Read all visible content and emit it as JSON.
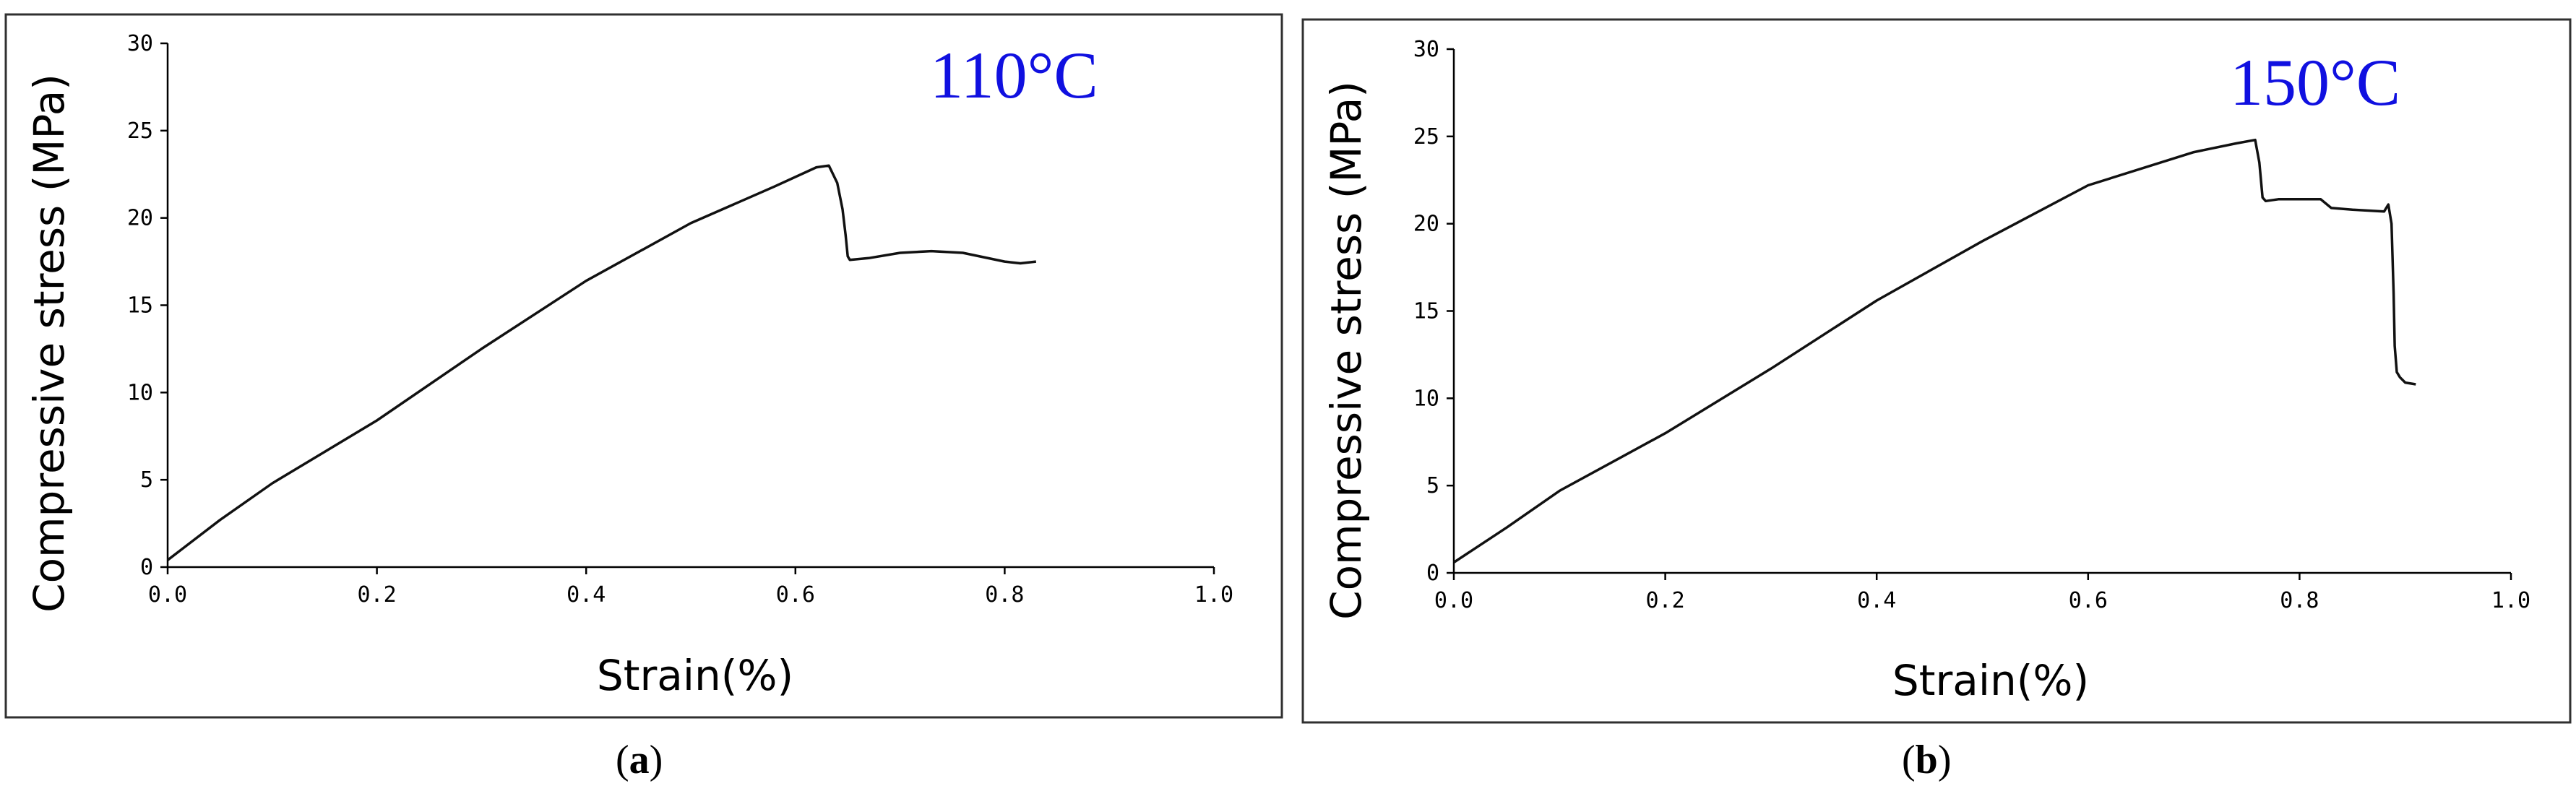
{
  "chart_data": [
    {
      "type": "line",
      "panel": "(a)",
      "annotation": "110°C",
      "xlabel": "Strain(%)",
      "ylabel": "Compressive stress (MPa)",
      "xlim": [
        0,
        1.0
      ],
      "ylim": [
        0,
        30
      ],
      "xticks": [
        "0.0",
        "0.2",
        "0.4",
        "0.6",
        "0.8",
        "1.0"
      ],
      "yticks": [
        "0",
        "5",
        "10",
        "15",
        "20",
        "25",
        "30"
      ],
      "x": [
        0,
        0.05,
        0.1,
        0.2,
        0.3,
        0.4,
        0.5,
        0.58,
        0.62,
        0.632,
        0.64,
        0.645,
        0.648,
        0.65,
        0.652,
        0.67,
        0.7,
        0.73,
        0.76,
        0.8,
        0.815,
        0.83
      ],
      "y": [
        0.4,
        2.7,
        4.8,
        8.4,
        12.5,
        16.4,
        19.7,
        21.8,
        22.9,
        23.0,
        22.0,
        20.5,
        19.0,
        17.8,
        17.6,
        17.7,
        18.0,
        18.1,
        18.0,
        17.5,
        17.4,
        17.5
      ]
    },
    {
      "type": "line",
      "panel": "(b)",
      "annotation": "150°C",
      "xlabel": "Strain(%)",
      "ylabel": "Compressive stress (MPa)",
      "xlim": [
        0,
        1.0
      ],
      "ylim": [
        0,
        30
      ],
      "xticks": [
        "0.0",
        "0.2",
        "0.4",
        "0.6",
        "0.8",
        "1.0"
      ],
      "yticks": [
        "0",
        "5",
        "10",
        "15",
        "20",
        "25",
        "30"
      ],
      "x": [
        0,
        0.05,
        0.1,
        0.2,
        0.3,
        0.4,
        0.5,
        0.6,
        0.7,
        0.74,
        0.758,
        0.762,
        0.765,
        0.768,
        0.78,
        0.8,
        0.82,
        0.83,
        0.85,
        0.88,
        0.884,
        0.887,
        0.889,
        0.89,
        0.892,
        0.895,
        0.9,
        0.91
      ],
      "y": [
        0.6,
        2.6,
        4.7,
        8.0,
        11.7,
        15.6,
        19.0,
        22.2,
        24.1,
        24.6,
        24.8,
        23.5,
        21.5,
        21.3,
        21.4,
        21.4,
        21.4,
        20.9,
        20.8,
        20.7,
        21.1,
        20.0,
        16.0,
        13.0,
        11.5,
        11.2,
        10.9,
        10.8
      ]
    }
  ],
  "style": {
    "annotation_color": "#1010e0",
    "curve_color": "#111111",
    "frame_color": "#303030"
  }
}
